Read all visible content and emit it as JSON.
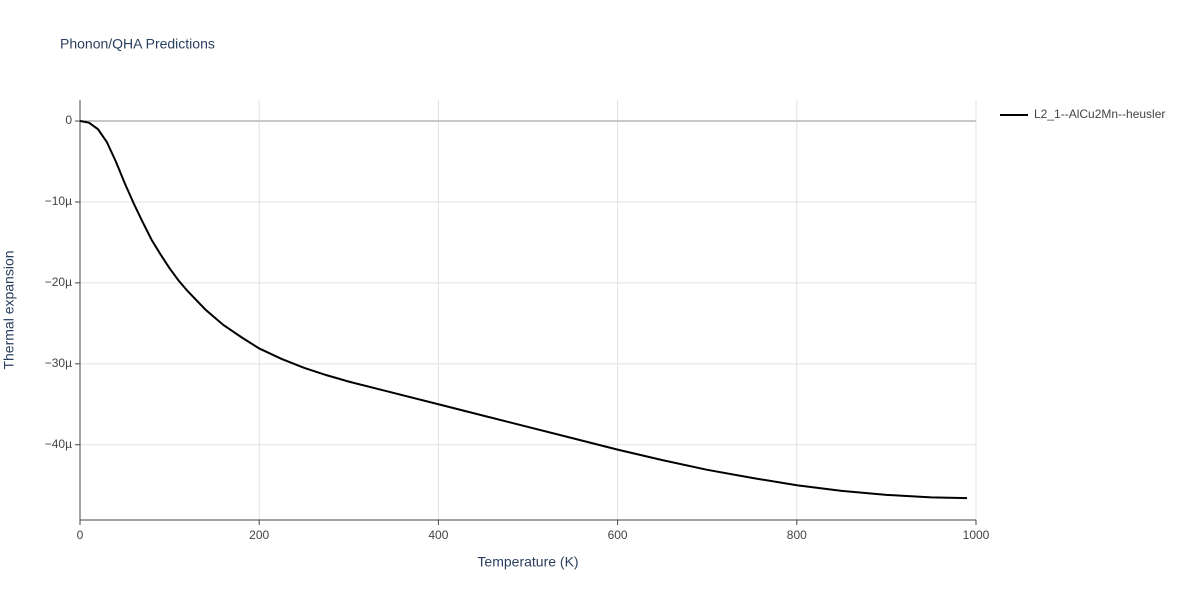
{
  "chart_data": {
    "type": "line",
    "title": "Phonon/QHA Predictions",
    "x_label": "Temperature (K)",
    "y_label": "Thermal expansion",
    "xlim": [
      0,
      1000
    ],
    "xticks": [
      0,
      200,
      400,
      600,
      800,
      1000
    ],
    "ylim": [
      -4.93e-05,
      2.6e-06
    ],
    "yticks": [
      {
        "value": -4e-05,
        "label": "−40µ"
      },
      {
        "value": -3e-05,
        "label": "−30µ"
      },
      {
        "value": -2e-05,
        "label": "−20µ"
      },
      {
        "value": -1e-05,
        "label": "−10µ"
      },
      0
    ],
    "grid": true,
    "legend": "right",
    "x": [
      0,
      10,
      20,
      30,
      40,
      50,
      60,
      70,
      80,
      90,
      100,
      110,
      120,
      140,
      160,
      180,
      200,
      225,
      250,
      275,
      300,
      350,
      400,
      450,
      500,
      550,
      600,
      650,
      700,
      750,
      800,
      850,
      900,
      950,
      990
    ],
    "series": [
      {
        "name": "L2_1--AlCu2Mn--heusler",
        "color": "#000000",
        "values": [
          0,
          -2e-07,
          -1e-06,
          -2.6e-06,
          -5e-06,
          -7.7e-06,
          -1.02e-05,
          -1.25e-05,
          -1.47e-05,
          -1.65e-05,
          -1.82e-05,
          -1.97e-05,
          -2.1e-05,
          -2.33e-05,
          -2.52e-05,
          -2.67e-05,
          -2.81e-05,
          -2.94e-05,
          -3.05e-05,
          -3.14e-05,
          -3.22e-05,
          -3.36e-05,
          -3.5e-05,
          -3.64e-05,
          -3.78e-05,
          -3.92e-05,
          -4.06e-05,
          -4.19e-05,
          -4.31e-05,
          -4.41e-05,
          -4.5e-05,
          -4.57e-05,
          -4.62e-05,
          -4.65e-05,
          -4.66e-05
        ]
      }
    ]
  }
}
